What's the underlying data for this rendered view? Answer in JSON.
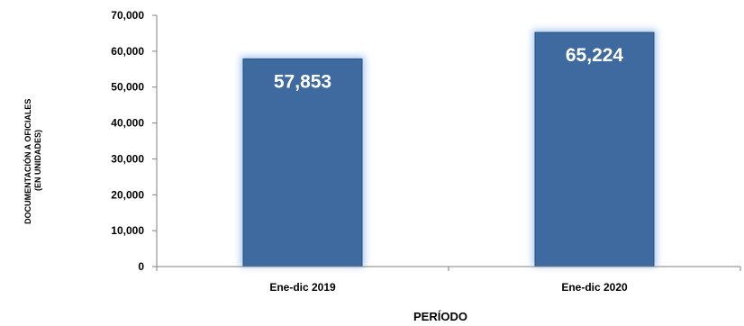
{
  "chart_data": {
    "type": "bar",
    "categories": [
      "Ene-dic 2019",
      "Ene-dic 2020"
    ],
    "values": [
      57853,
      65224
    ],
    "data_labels": [
      "57,853",
      "65,224"
    ],
    "title": "",
    "xlabel": "PERÍODO",
    "ylabel_lines": [
      "DOCUMENTACIÓN A OFICIALES",
      "(EN UNIDADES)"
    ],
    "ylim": [
      0,
      70000
    ],
    "yticks": [
      0,
      10000,
      20000,
      30000,
      40000,
      50000,
      60000,
      70000
    ],
    "ytick_labels": [
      "0",
      "10,000",
      "20,000",
      "30,000",
      "40,000",
      "50,000",
      "60,000",
      "70,000"
    ],
    "grid": false,
    "legend": "none",
    "colors": {
      "bar": "#3f6aa0",
      "bar_edge": "#2b4f7e",
      "glow": "#a9c8f0",
      "axis": "#808080"
    }
  }
}
